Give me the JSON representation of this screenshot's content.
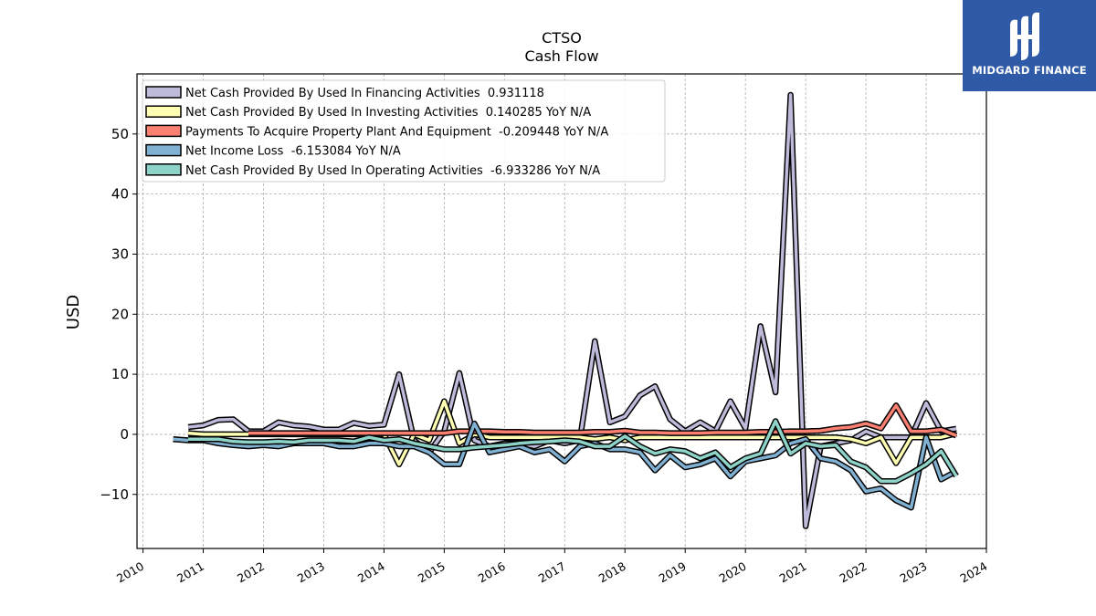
{
  "chart_data": {
    "type": "line",
    "title": "CTSO",
    "subtitle": "Cash Flow",
    "ylabel": "USD",
    "xlim": [
      2009.9,
      2024.0
    ],
    "ylim": [
      -19,
      60
    ],
    "xticks": [
      2010,
      2011,
      2012,
      2013,
      2014,
      2015,
      2016,
      2017,
      2018,
      2019,
      2020,
      2021,
      2022,
      2023,
      2024
    ],
    "yticks": [
      -10,
      0,
      10,
      20,
      30,
      40,
      50
    ],
    "grid": true,
    "legend_position": "upper-left",
    "series": [
      {
        "name": "Net Cash Provided By Used In Financing Activities  0.931118",
        "color": "#bebada",
        "x": [
          2010.75,
          2011.0,
          2011.25,
          2011.5,
          2011.75,
          2012.0,
          2012.25,
          2012.5,
          2012.75,
          2013.0,
          2013.25,
          2013.5,
          2013.75,
          2014.0,
          2014.25,
          2014.5,
          2014.75,
          2015.0,
          2015.25,
          2015.5,
          2015.75,
          2016.0,
          2016.25,
          2016.5,
          2016.75,
          2017.0,
          2017.25,
          2017.5,
          2017.75,
          2018.0,
          2018.25,
          2018.5,
          2018.75,
          2019.0,
          2019.25,
          2019.5,
          2019.75,
          2020.0,
          2020.25,
          2020.5,
          2020.75,
          2021.0,
          2021.25,
          2021.5,
          2021.75,
          2022.0,
          2022.25,
          2022.5,
          2022.75,
          2023.0,
          2023.25,
          2023.5
        ],
        "values": [
          1.2,
          1.5,
          2.4,
          2.5,
          0.5,
          0.5,
          2.0,
          1.5,
          1.3,
          0.8,
          0.8,
          1.9,
          1.4,
          1.6,
          10.0,
          -1.0,
          -3.0,
          0.5,
          10.2,
          -1.0,
          -2.0,
          -1.5,
          -1.5,
          -2.0,
          -1.0,
          -1.5,
          -1.0,
          15.5,
          2.0,
          3.0,
          6.5,
          8.0,
          2.5,
          0.5,
          2.0,
          0.5,
          5.5,
          1.0,
          18.0,
          7.0,
          56.5,
          -15.3,
          -2.0,
          -1.5,
          -1.0,
          0.5,
          -0.5,
          -0.5,
          -0.5,
          5.2,
          0.5,
          0.93
        ]
      },
      {
        "name": "Net Cash Provided By Used In Investing Activities  0.140285 YoY N/A",
        "color": "#ffffb3",
        "x": [
          2010.75,
          2011.0,
          2011.25,
          2011.5,
          2011.75,
          2012.0,
          2012.25,
          2012.5,
          2012.75,
          2013.0,
          2013.25,
          2013.5,
          2013.75,
          2014.0,
          2014.25,
          2014.5,
          2014.75,
          2015.0,
          2015.25,
          2015.5,
          2015.75,
          2016.0,
          2016.25,
          2016.5,
          2016.75,
          2017.0,
          2017.25,
          2017.5,
          2017.75,
          2018.0,
          2018.25,
          2018.5,
          2018.75,
          2019.0,
          2019.25,
          2019.5,
          2019.75,
          2020.0,
          2020.25,
          2020.5,
          2020.75,
          2021.0,
          2021.25,
          2021.5,
          2021.75,
          2022.0,
          2022.25,
          2022.5,
          2022.75,
          2023.0,
          2023.25,
          2023.5
        ],
        "values": [
          0.2,
          0.0,
          0.0,
          0.0,
          0.0,
          0.0,
          0.0,
          0.0,
          0.0,
          0.0,
          0.0,
          0.0,
          0.0,
          0.0,
          -5.0,
          0.0,
          -1.0,
          5.5,
          -1.5,
          0.0,
          -0.5,
          -0.5,
          -0.5,
          -0.5,
          -0.5,
          -0.5,
          -0.5,
          -0.8,
          -0.5,
          -1.0,
          -0.5,
          -0.5,
          -0.5,
          -0.5,
          -0.5,
          -0.5,
          -0.5,
          -0.5,
          -0.5,
          -0.5,
          -0.5,
          -0.5,
          -0.5,
          -0.5,
          -0.8,
          -1.5,
          -0.5,
          -4.8,
          -0.5,
          -0.5,
          -0.5,
          0.14
        ]
      },
      {
        "name": "Payments To Acquire Property Plant And Equipment  -0.209448 YoY N/A",
        "color": "#fb8072",
        "x": [
          2011.75,
          2012.0,
          2012.25,
          2012.5,
          2012.75,
          2013.0,
          2013.25,
          2013.5,
          2013.75,
          2014.0,
          2014.25,
          2014.5,
          2014.75,
          2015.0,
          2015.25,
          2015.5,
          2015.75,
          2016.0,
          2016.25,
          2016.5,
          2016.75,
          2017.0,
          2017.25,
          2017.5,
          2017.75,
          2018.0,
          2018.25,
          2018.5,
          2018.75,
          2019.0,
          2019.25,
          2019.5,
          2019.75,
          2020.0,
          2020.25,
          2020.5,
          2020.75,
          2021.0,
          2021.25,
          2021.5,
          2021.75,
          2022.0,
          2022.25,
          2022.5,
          2022.75,
          2023.0,
          2023.25,
          2023.5
        ],
        "values": [
          0.2,
          0.2,
          0.2,
          0.2,
          0.2,
          0.2,
          0.2,
          0.2,
          0.2,
          0.2,
          0.2,
          0.2,
          0.2,
          0.2,
          0.5,
          0.5,
          0.5,
          0.4,
          0.4,
          0.3,
          0.3,
          0.3,
          0.3,
          0.4,
          0.4,
          0.6,
          0.3,
          0.3,
          0.2,
          0.2,
          0.2,
          0.3,
          0.3,
          0.3,
          0.4,
          0.4,
          0.5,
          0.5,
          0.6,
          1.0,
          1.2,
          1.8,
          1.0,
          4.8,
          0.5,
          0.5,
          0.8,
          -0.21
        ]
      },
      {
        "name": "Net Income Loss  -6.153084 YoY N/A",
        "color": "#80b1d3",
        "x": [
          2010.5,
          2010.75,
          2011.0,
          2011.25,
          2011.5,
          2011.75,
          2012.0,
          2012.25,
          2012.5,
          2012.75,
          2013.0,
          2013.25,
          2013.5,
          2013.75,
          2014.0,
          2014.25,
          2014.5,
          2014.75,
          2015.0,
          2015.25,
          2015.5,
          2015.75,
          2016.0,
          2016.25,
          2016.5,
          2016.75,
          2017.0,
          2017.25,
          2017.5,
          2017.75,
          2018.0,
          2018.25,
          2018.5,
          2018.75,
          2019.0,
          2019.25,
          2019.5,
          2019.75,
          2020.0,
          2020.25,
          2020.5,
          2020.75,
          2021.0,
          2021.25,
          2021.5,
          2021.75,
          2022.0,
          2022.25,
          2022.5,
          2022.75,
          2023.0,
          2023.25,
          2023.5
        ],
        "values": [
          -0.8,
          -1.0,
          -1.0,
          -1.5,
          -1.8,
          -2.0,
          -1.8,
          -2.0,
          -1.5,
          -1.5,
          -1.5,
          -2.0,
          -2.0,
          -1.5,
          -1.5,
          -2.0,
          -2.0,
          -3.0,
          -5.0,
          -5.0,
          1.8,
          -3.0,
          -2.5,
          -2.0,
          -3.0,
          -2.5,
          -4.5,
          -2.0,
          -1.5,
          -2.5,
          -2.5,
          -3.0,
          -6.0,
          -3.5,
          -5.5,
          -5.0,
          -4.0,
          -7.0,
          -4.5,
          -4.0,
          -3.5,
          -1.5,
          -0.8,
          -4.0,
          -4.5,
          -6.0,
          -9.5,
          -9.0,
          -11.0,
          -12.2,
          -0.5,
          -7.5,
          -6.15
        ]
      },
      {
        "name": "Net Cash Provided By Used In Operating Activities  -6.933286 YoY N/A",
        "color": "#8dd3c7",
        "x": [
          2010.75,
          2011.0,
          2011.25,
          2011.5,
          2011.75,
          2012.0,
          2012.25,
          2012.5,
          2012.75,
          2013.0,
          2013.25,
          2013.5,
          2013.75,
          2014.0,
          2014.25,
          2014.5,
          2014.75,
          2015.0,
          2015.25,
          2015.5,
          2015.75,
          2016.0,
          2016.25,
          2016.5,
          2016.75,
          2017.0,
          2017.25,
          2017.5,
          2017.75,
          2018.0,
          2018.25,
          2018.5,
          2018.75,
          2019.0,
          2019.25,
          2019.5,
          2019.75,
          2020.0,
          2020.25,
          2020.5,
          2020.75,
          2021.0,
          2021.25,
          2021.5,
          2021.75,
          2022.0,
          2022.25,
          2022.5,
          2022.75,
          2023.0,
          2023.25,
          2023.5
        ],
        "values": [
          -0.8,
          -0.8,
          -0.8,
          -1.2,
          -1.3,
          -1.3,
          -1.2,
          -1.3,
          -1.0,
          -1.0,
          -1.0,
          -1.2,
          -0.5,
          -1.0,
          -0.8,
          -1.5,
          -2.0,
          -2.5,
          -2.5,
          -2.2,
          -2.0,
          -1.8,
          -1.5,
          -1.3,
          -1.2,
          -1.0,
          -1.2,
          -2.0,
          -2.0,
          -0.3,
          -2.0,
          -3.2,
          -2.5,
          -2.8,
          -4.0,
          -3.0,
          -5.5,
          -4.0,
          -3.2,
          2.2,
          -3.2,
          -1.5,
          -2.0,
          -1.8,
          -4.5,
          -5.5,
          -7.8,
          -7.8,
          -6.5,
          -5.0,
          -2.8,
          -6.93
        ]
      }
    ]
  },
  "brand": {
    "name": "MIDGARD FINANCE",
    "color": "#2e5aa7"
  }
}
